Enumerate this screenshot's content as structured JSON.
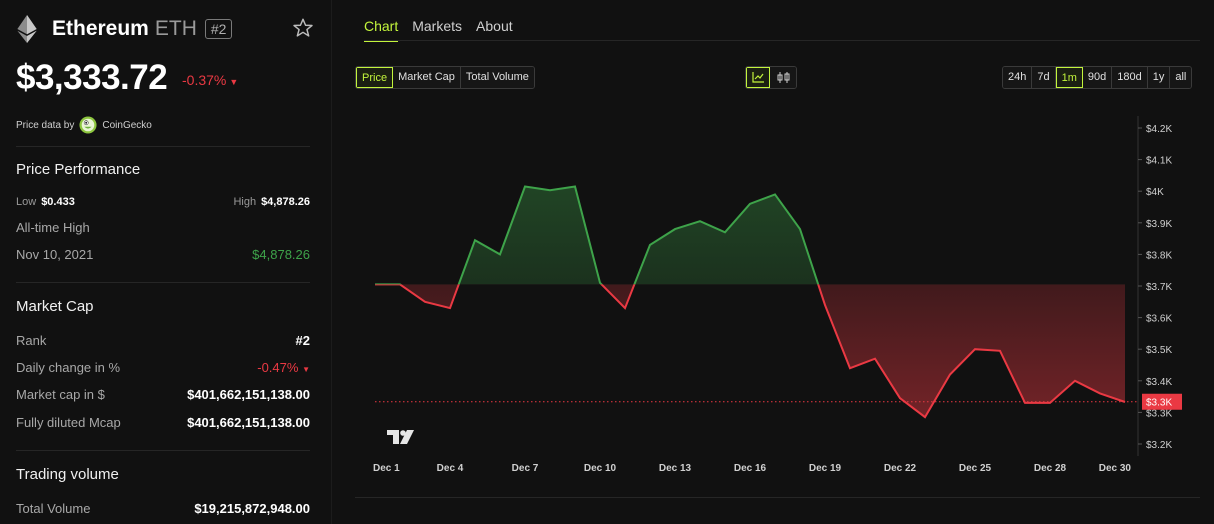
{
  "coin": {
    "name": "Ethereum",
    "symbol": "ETH",
    "rank_badge": "#2"
  },
  "price": {
    "value": "$3,333.72",
    "change": "-0.37%",
    "change_arrow": "▼"
  },
  "provider": {
    "label": "Price data by",
    "name": "CoinGecko"
  },
  "performance": {
    "title": "Price Performance",
    "low_label": "Low",
    "low_value": "$0.433",
    "high_label": "High",
    "high_value": "$4,878.26",
    "ath_label": "All-time High",
    "ath_date": "Nov 10, 2021",
    "ath_value": "$4,878.26"
  },
  "market_cap": {
    "title": "Market Cap",
    "rank_label": "Rank",
    "rank_value": "#2",
    "daily_label": "Daily change in %",
    "daily_value": "-0.47%",
    "daily_arrow": "▼",
    "mcap_label": "Market cap in $",
    "mcap_value": "$401,662,151,138.00",
    "fdv_label": "Fully diluted Mcap",
    "fdv_value": "$401,662,151,138.00"
  },
  "trading": {
    "title": "Trading volume",
    "total_label": "Total Volume",
    "total_value": "$19,215,872,948.00"
  },
  "tabs": [
    {
      "label": "Chart",
      "active": true
    },
    {
      "label": "Markets",
      "active": false
    },
    {
      "label": "About",
      "active": false
    }
  ],
  "metrics": [
    {
      "label": "Price",
      "active": true
    },
    {
      "label": "Market Cap",
      "active": false
    },
    {
      "label": "Total Volume",
      "active": false
    }
  ],
  "chart_type_icons": [
    "line-chart-icon",
    "candlestick-icon"
  ],
  "ranges": [
    {
      "label": "24h",
      "active": false
    },
    {
      "label": "7d",
      "active": false
    },
    {
      "label": "1m",
      "active": true
    },
    {
      "label": "90d",
      "active": false
    },
    {
      "label": "180d",
      "active": false
    },
    {
      "label": "1y",
      "active": false
    },
    {
      "label": "all",
      "active": false
    }
  ],
  "colors": {
    "accent": "#c3f53c",
    "up": "#3ea34a",
    "down": "#ea3943",
    "background": "#111111"
  },
  "chart_data": {
    "type": "line",
    "x_ticks": [
      "Dec 1",
      "Dec 4",
      "Dec 7",
      "Dec 10",
      "Dec 13",
      "Dec 16",
      "Dec 19",
      "Dec 22",
      "Dec 25",
      "Dec 28",
      "Dec 30"
    ],
    "y_ticks": [
      "$4.2K",
      "$4.1K",
      "$4K",
      "$3.9K",
      "$3.8K",
      "$3.7K",
      "$3.6K",
      "$3.5K",
      "$3.4K",
      "$3.3K",
      "$3.2K"
    ],
    "ylim": [
      3200,
      4200
    ],
    "baseline": 3705,
    "current_price_label": "$3.3K",
    "current_price": 3333.72,
    "x_range": [
      1,
      31
    ],
    "points": [
      [
        1,
        3705
      ],
      [
        2,
        3705
      ],
      [
        3,
        3650
      ],
      [
        4,
        3630
      ],
      [
        5,
        3845
      ],
      [
        6,
        3800
      ],
      [
        7,
        4015
      ],
      [
        8,
        4003
      ],
      [
        9,
        4015
      ],
      [
        10,
        3710
      ],
      [
        11,
        3630
      ],
      [
        12,
        3830
      ],
      [
        13,
        3880
      ],
      [
        14,
        3905
      ],
      [
        15,
        3870
      ],
      [
        16,
        3960
      ],
      [
        17,
        3990
      ],
      [
        18,
        3880
      ],
      [
        19,
        3640
      ],
      [
        20,
        3440
      ],
      [
        21,
        3470
      ],
      [
        22,
        3345
      ],
      [
        23,
        3285
      ],
      [
        24,
        3420
      ],
      [
        25,
        3500
      ],
      [
        26,
        3495
      ],
      [
        27,
        3330
      ],
      [
        28,
        3330
      ],
      [
        29,
        3400
      ],
      [
        30,
        3360
      ],
      [
        31,
        3333
      ]
    ],
    "watermark": "TradingView logo"
  }
}
